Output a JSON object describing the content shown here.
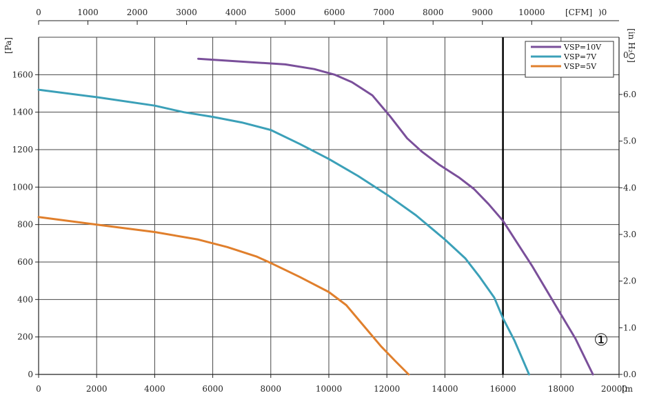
{
  "chart_data": {
    "type": "line",
    "x_bottom": {
      "label": "[m",
      "ticks": [
        0,
        2000,
        4000,
        6000,
        8000,
        10000,
        12000,
        14000,
        16000,
        18000,
        20000
      ],
      "tick_labels": [
        "0",
        "2000",
        "4000",
        "6000",
        "8000",
        "10000",
        "12000",
        "14000",
        "16000",
        "18000",
        "20000"
      ],
      "range": [
        0,
        20000
      ]
    },
    "x_top": {
      "label": "[CFM]",
      "ticks": [
        0,
        1000,
        2000,
        3000,
        4000,
        5000,
        6000,
        7000,
        8000,
        9000,
        10000
      ],
      "tick_labels": [
        "0",
        "1000",
        "2000",
        "3000",
        "4000",
        "5000",
        "6000",
        "7000",
        "8000",
        "9000",
        "10000"
      ],
      "partial_label": ")0"
    },
    "y_left": {
      "label": "[Pa]",
      "ticks": [
        0,
        200,
        400,
        600,
        800,
        1000,
        1200,
        1400,
        1600
      ],
      "tick_labels": [
        "0",
        "200",
        "400",
        "600",
        "800",
        "1000",
        "1200",
        "1400",
        "1600"
      ],
      "range": [
        0,
        1800
      ]
    },
    "y_right": {
      "label": "[in H₂O]",
      "ticks": [
        0,
        1,
        2,
        3,
        4,
        5,
        6
      ],
      "tick_labels": [
        "0.0",
        "1.0",
        "2.0",
        "3.0",
        "4.0",
        "5.0",
        "6.0"
      ],
      "partial_label": "0"
    },
    "grid": true,
    "legend_position": "top-right",
    "reference_line_x": 16000,
    "marker": "①",
    "series": [
      {
        "name": "VSP=10V",
        "color": "#7a4f9a",
        "points": [
          [
            5500,
            1685
          ],
          [
            6500,
            1675
          ],
          [
            7500,
            1665
          ],
          [
            8500,
            1655
          ],
          [
            9500,
            1630
          ],
          [
            10200,
            1600
          ],
          [
            10800,
            1560
          ],
          [
            11500,
            1490
          ],
          [
            12100,
            1380
          ],
          [
            12700,
            1260
          ],
          [
            13200,
            1190
          ],
          [
            13800,
            1120
          ],
          [
            14500,
            1050
          ],
          [
            15000,
            990
          ],
          [
            15500,
            910
          ],
          [
            16000,
            820
          ],
          [
            16500,
            700
          ],
          [
            17000,
            580
          ],
          [
            17500,
            450
          ],
          [
            18000,
            320
          ],
          [
            18500,
            190
          ],
          [
            19100,
            0
          ]
        ]
      },
      {
        "name": "VSP=7V",
        "color": "#3ba0b8",
        "points": [
          [
            0,
            1520
          ],
          [
            2000,
            1480
          ],
          [
            4000,
            1435
          ],
          [
            5000,
            1400
          ],
          [
            6000,
            1375
          ],
          [
            7000,
            1345
          ],
          [
            8000,
            1305
          ],
          [
            9000,
            1230
          ],
          [
            10000,
            1150
          ],
          [
            11000,
            1060
          ],
          [
            12000,
            960
          ],
          [
            13000,
            850
          ],
          [
            14000,
            720
          ],
          [
            14700,
            620
          ],
          [
            15200,
            520
          ],
          [
            15700,
            410
          ],
          [
            16000,
            300
          ],
          [
            16400,
            180
          ],
          [
            16900,
            0
          ]
        ]
      },
      {
        "name": "VSP=5V",
        "color": "#e07f2c",
        "points": [
          [
            0,
            840
          ],
          [
            2000,
            800
          ],
          [
            4000,
            760
          ],
          [
            5500,
            720
          ],
          [
            6500,
            680
          ],
          [
            7500,
            630
          ],
          [
            8000,
            595
          ],
          [
            9000,
            520
          ],
          [
            10000,
            440
          ],
          [
            10600,
            370
          ],
          [
            11200,
            260
          ],
          [
            11800,
            150
          ],
          [
            12300,
            70
          ],
          [
            12750,
            0
          ]
        ]
      }
    ]
  }
}
